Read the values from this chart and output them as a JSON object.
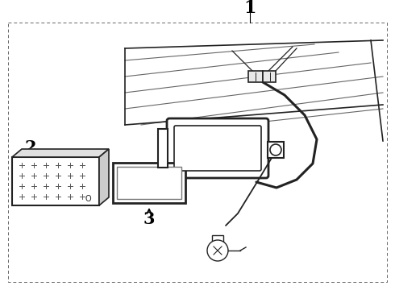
{
  "background_color": "#ffffff",
  "line_color": "#222222",
  "label_1": "1",
  "label_2": "2",
  "label_3": "3",
  "label_fontsize": 13,
  "fig_width": 4.9,
  "fig_height": 3.6,
  "dpi": 100
}
